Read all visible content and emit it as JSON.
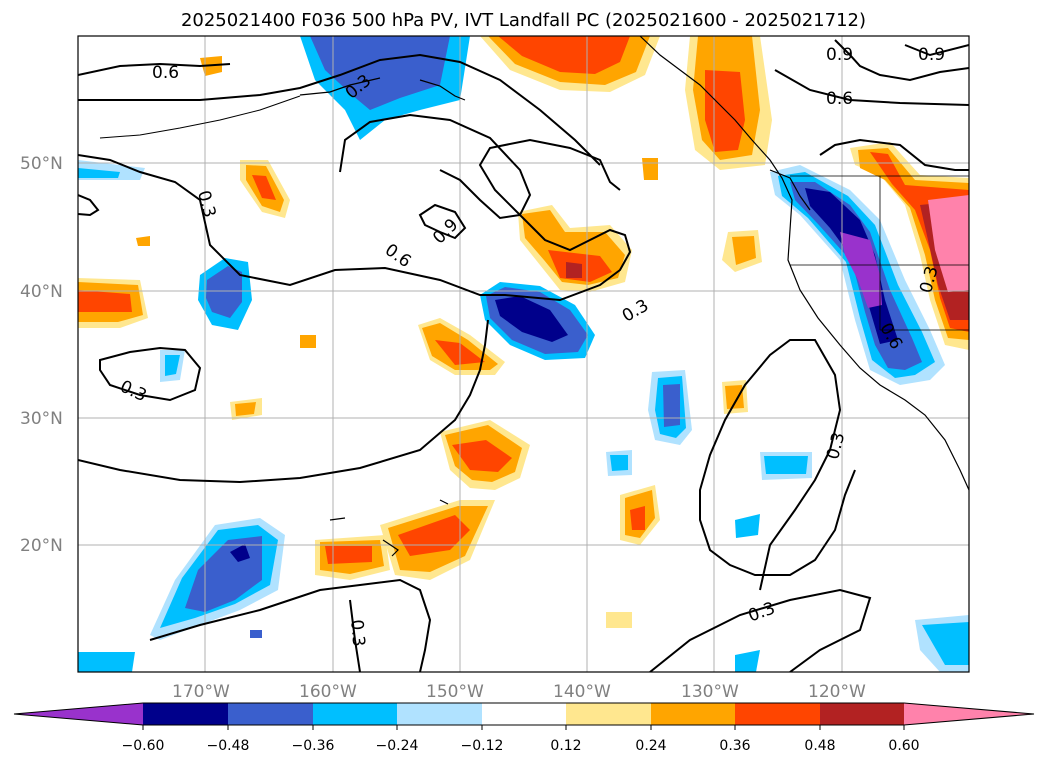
{
  "title": "2025021400 F036 500 hPa PV, IVT Landfall PC (2025021600 - 2025021712)",
  "longitude_labels": [
    "170°W",
    "160°W",
    "150°W",
    "140°W",
    "130°W",
    "120°W"
  ],
  "latitude_labels": [
    "50°N",
    "40°N",
    "30°N",
    "20°N"
  ],
  "contour_labels": [
    "0.6",
    "0.9",
    "0.6",
    "0.9",
    "0.6",
    "0.3",
    "0.3",
    "0.3",
    "0.3",
    "0.3",
    "0.3",
    "0.9",
    "0.3",
    "0.6",
    "0.3"
  ],
  "colorbar": {
    "ticks": [
      "−0.60",
      "−0.48",
      "−0.36",
      "−0.24",
      "−0.12",
      "0.12",
      "0.24",
      "0.36",
      "0.48",
      "0.60"
    ],
    "colors": [
      "#9932cc",
      "#00008b",
      "#3a5fcd",
      "#00bfff",
      "#b0e2ff",
      "#ffffff",
      "#ffe78f",
      "#ffa500",
      "#ff4500",
      "#b22222",
      "#ff82ab"
    ]
  },
  "chart_data": {
    "type": "heatmap",
    "title": "2025021400 F036 500 hPa PV, IVT Landfall PC (2025021600 - 2025021712)",
    "x_ticks": [
      "170°W",
      "160°W",
      "150°W",
      "140°W",
      "130°W",
      "120°W"
    ],
    "y_ticks": [
      "50°N",
      "40°N",
      "30°N",
      "20°N"
    ],
    "colorbar_levels": [
      -0.6,
      -0.48,
      -0.36,
      -0.24,
      -0.12,
      0.12,
      0.24,
      0.36,
      0.48,
      0.6
    ],
    "contour_levels": [
      0.3,
      0.6,
      0.9
    ],
    "grid": true
  }
}
